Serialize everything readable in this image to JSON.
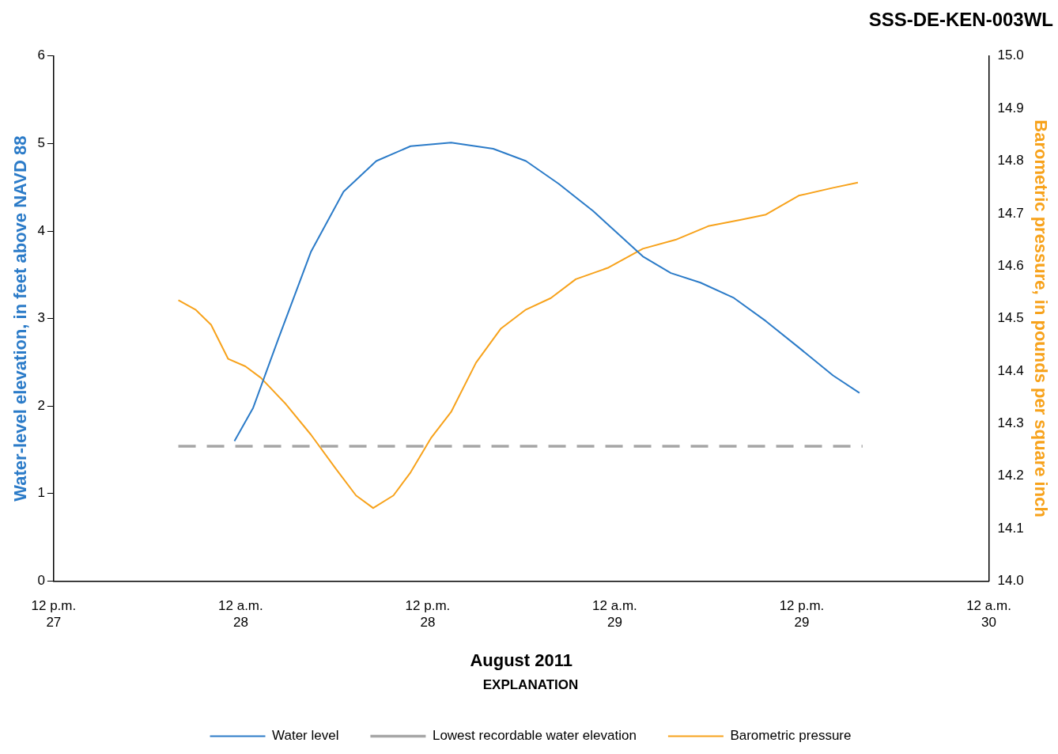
{
  "chart_data": {
    "type": "line",
    "title": "SSS-DE-KEN-003WL",
    "xlabel": "August 2011",
    "ylabel": "Water-level elevation, in feet above NAVD 88",
    "y2label": "Barometric pressure, in pounds per square inch",
    "legend_title": "EXPLANATION",
    "legend": "bottom",
    "grid": false,
    "marker": "none",
    "xlim": [
      "2011-08-27T12:00",
      "2011-08-30T00:00"
    ],
    "xticks": [
      {
        "value": "2011-08-27T12:00",
        "label": "12 p.m.\n27"
      },
      {
        "value": "2011-08-28T00:00",
        "label": "12 a.m.\n28"
      },
      {
        "value": "2011-08-28T12:00",
        "label": "12 p.m.\n28"
      },
      {
        "value": "2011-08-29T00:00",
        "label": "12 a.m.\n29"
      },
      {
        "value": "2011-08-29T12:00",
        "label": "12 p.m.\n29"
      },
      {
        "value": "2011-08-30T00:00",
        "label": "12 a.m.\n30"
      }
    ],
    "ylim": [
      0,
      6
    ],
    "yticks": [
      0,
      1,
      2,
      3,
      4,
      5,
      6
    ],
    "y2lim": [
      14,
      15
    ],
    "y2ticks": [
      {
        "value": 14,
        "label": "14.0"
      },
      14.1,
      14.2,
      14.3,
      14.4,
      14.5,
      14.6,
      14.7,
      14.8,
      14.9,
      {
        "value": 15,
        "label": "15.0"
      }
    ],
    "series": [
      {
        "name": "Water level",
        "color": "#2b7bc8",
        "x": [
          "2011-08-27T23:36",
          "2011-08-28T00:48",
          "2011-08-28T02:24",
          "2011-08-28T04:30",
          "2011-08-28T06:36",
          "2011-08-28T08:42",
          "2011-08-28T10:54",
          "2011-08-28T13:30",
          "2011-08-28T16:12",
          "2011-08-28T18:18",
          "2011-08-28T20:24",
          "2011-08-28T22:36",
          "2011-08-29T00:12",
          "2011-08-29T01:48",
          "2011-08-29T03:36",
          "2011-08-29T05:30",
          "2011-08-29T07:36",
          "2011-08-29T09:42",
          "2011-08-29T11:48",
          "2011-08-29T14:00",
          "2011-08-29T15:42"
        ],
        "values": [
          1.6,
          1.98,
          2.76,
          3.76,
          4.45,
          4.8,
          4.97,
          5.01,
          4.94,
          4.8,
          4.54,
          4.23,
          3.97,
          3.71,
          3.52,
          3.41,
          3.24,
          2.97,
          2.67,
          2.35,
          2.15
        ]
      },
      {
        "name": "Lowest recordable water elevation",
        "color": "#a6a6a6",
        "line_style": "dashed",
        "x": [
          "2011-08-27T20:00",
          "2011-08-29T15:54"
        ],
        "values": [
          1.54,
          1.54
        ]
      },
      {
        "name": "Barometric pressure",
        "color": "#f7a21b",
        "axis": "y2",
        "x": [
          "2011-08-27T20:00",
          "2011-08-27T21:06",
          "2011-08-27T22:06",
          "2011-08-27T23:12",
          "2011-08-28T00:18",
          "2011-08-28T01:18",
          "2011-08-28T02:54",
          "2011-08-28T04:30",
          "2011-08-28T06:06",
          "2011-08-28T07:24",
          "2011-08-28T08:30",
          "2011-08-28T09:48",
          "2011-08-28T10:54",
          "2011-08-28T12:12",
          "2011-08-28T13:30",
          "2011-08-28T15:06",
          "2011-08-28T16:42",
          "2011-08-28T18:18",
          "2011-08-28T19:54",
          "2011-08-28T21:30",
          "2011-08-28T23:36",
          "2011-08-29T01:48",
          "2011-08-29T03:54",
          "2011-08-29T06:00",
          "2011-08-29T08:06",
          "2011-08-29T09:42",
          "2011-08-29T11:48",
          "2011-08-29T14:00",
          "2011-08-29T15:36"
        ],
        "values": [
          14.535,
          14.517,
          14.488,
          14.423,
          14.409,
          14.387,
          14.337,
          14.279,
          14.214,
          14.163,
          14.139,
          14.163,
          14.207,
          14.272,
          14.322,
          14.416,
          14.481,
          14.517,
          14.539,
          14.575,
          14.597,
          14.633,
          14.65,
          14.676,
          14.688,
          14.698,
          14.734,
          14.749,
          14.759
        ]
      }
    ]
  }
}
